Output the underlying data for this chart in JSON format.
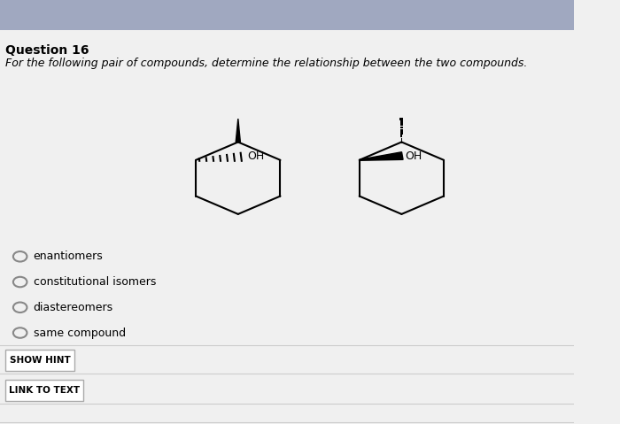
{
  "title": "Question 16",
  "subtitle": "For the following pair of compounds, determine the relationship between the two compounds.",
  "content_bg": "#f0f0f0",
  "header_bar_color": "#a0a8c0",
  "options": [
    "enantiomers",
    "constitutional isomers",
    "diastereomers",
    "same compound"
  ],
  "button1": "SHOW HINT",
  "button2": "LINK TO TEXT"
}
